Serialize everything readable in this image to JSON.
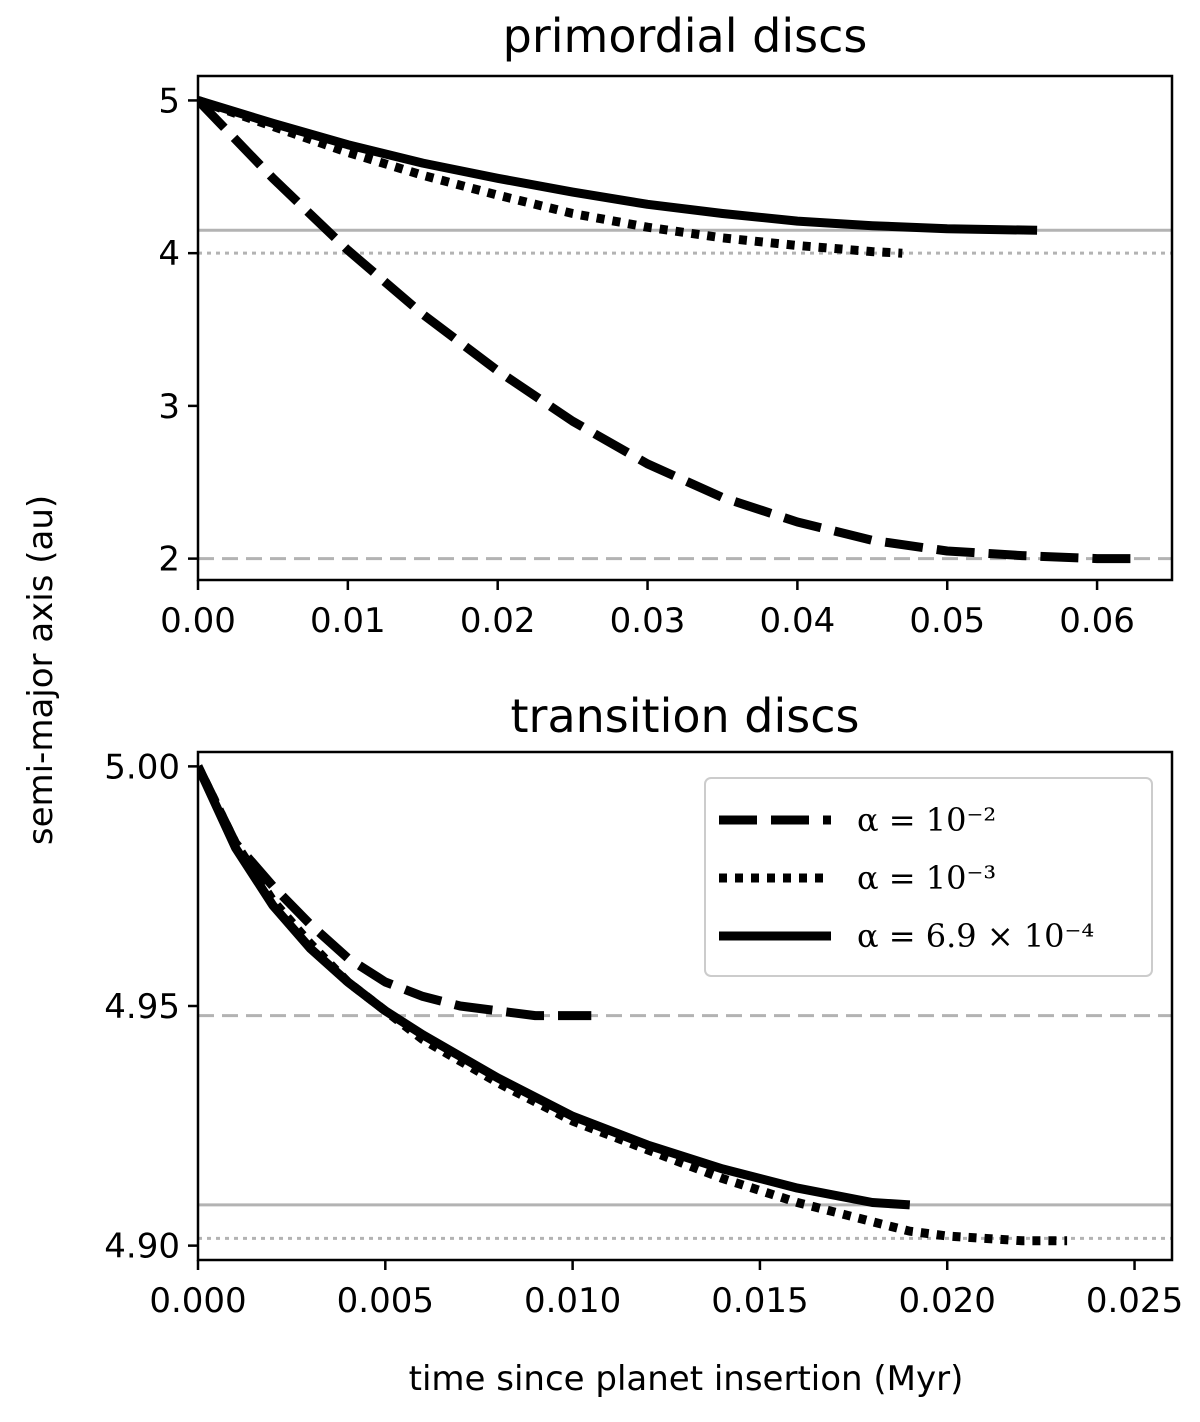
{
  "figure": {
    "ylabel": "semi-major axis (au)",
    "xlabel": "time since planet insertion (Myr)"
  },
  "chart_data": [
    {
      "type": "line",
      "title": "primordial discs",
      "xlabel": "",
      "ylabel": "semi-major axis (au)",
      "xlim": [
        0.0,
        0.065
      ],
      "ylim": [
        1.86,
        5.16
      ],
      "xticks": [
        0.0,
        0.01,
        0.02,
        0.03,
        0.04,
        0.05,
        0.06
      ],
      "xtick_labels": [
        "0.00",
        "0.01",
        "0.02",
        "0.03",
        "0.04",
        "0.05",
        "0.06"
      ],
      "yticks": [
        2,
        3,
        4,
        5
      ],
      "ytick_labels": [
        "2",
        "3",
        "4",
        "5"
      ],
      "grid": false,
      "series": [
        {
          "name": "α = 10⁻²",
          "style": "dashed",
          "color": "#000000",
          "x": [
            0.0,
            0.005,
            0.01,
            0.015,
            0.02,
            0.025,
            0.03,
            0.035,
            0.04,
            0.045,
            0.05,
            0.055,
            0.06,
            0.0625
          ],
          "y": [
            5.0,
            4.49,
            4.02,
            3.6,
            3.23,
            2.9,
            2.62,
            2.4,
            2.24,
            2.12,
            2.05,
            2.02,
            2.0,
            2.0
          ]
        },
        {
          "name": "α = 10⁻³",
          "style": "dotted",
          "color": "#000000",
          "x": [
            0.0,
            0.005,
            0.01,
            0.015,
            0.02,
            0.025,
            0.03,
            0.035,
            0.04,
            0.045,
            0.047
          ],
          "y": [
            5.0,
            4.83,
            4.66,
            4.51,
            4.38,
            4.26,
            4.17,
            4.1,
            4.05,
            4.01,
            4.0
          ]
        },
        {
          "name": "α = 6.9 × 10⁻⁴",
          "style": "solid",
          "color": "#000000",
          "x": [
            0.0,
            0.005,
            0.01,
            0.015,
            0.02,
            0.025,
            0.03,
            0.035,
            0.04,
            0.045,
            0.05,
            0.056
          ],
          "y": [
            5.0,
            4.85,
            4.71,
            4.59,
            4.49,
            4.4,
            4.32,
            4.26,
            4.21,
            4.18,
            4.16,
            4.15
          ]
        }
      ],
      "reference_lines": [
        {
          "y": 4.15,
          "style": "solid",
          "color": "#b3b3b3"
        },
        {
          "y": 4.0,
          "style": "dotted",
          "color": "#b3b3b3"
        },
        {
          "y": 2.0,
          "style": "dashed",
          "color": "#b3b3b3"
        }
      ]
    },
    {
      "type": "line",
      "title": "transition discs",
      "xlabel": "time since planet insertion (Myr)",
      "ylabel": "semi-major axis (au)",
      "xlim": [
        0.0,
        0.026
      ],
      "ylim": [
        4.897,
        5.003
      ],
      "xticks": [
        0.0,
        0.005,
        0.01,
        0.015,
        0.02,
        0.025
      ],
      "xtick_labels": [
        "0.000",
        "0.005",
        "0.010",
        "0.015",
        "0.020",
        "0.025"
      ],
      "yticks": [
        4.9,
        4.95,
        5.0
      ],
      "ytick_labels": [
        "4.90",
        "4.95",
        "5.00"
      ],
      "grid": false,
      "legend": {
        "location": "upper right",
        "entries": [
          {
            "label": "α = 10⁻²",
            "style": "dashed"
          },
          {
            "label": "α = 10⁻³",
            "style": "dotted"
          },
          {
            "label": "α = 6.9 × 10⁻⁴",
            "style": "solid"
          }
        ]
      },
      "series": [
        {
          "name": "α = 10⁻²",
          "style": "dashed",
          "color": "#000000",
          "x": [
            0.0,
            0.001,
            0.002,
            0.003,
            0.004,
            0.005,
            0.006,
            0.007,
            0.008,
            0.009,
            0.0105
          ],
          "y": [
            5.0,
            4.984,
            4.975,
            4.967,
            4.96,
            4.955,
            4.952,
            4.95,
            4.949,
            4.948,
            4.948
          ]
        },
        {
          "name": "α = 10⁻³",
          "style": "dotted",
          "color": "#000000",
          "x": [
            0.0,
            0.001,
            0.002,
            0.003,
            0.004,
            0.005,
            0.006,
            0.008,
            0.01,
            0.012,
            0.014,
            0.016,
            0.018,
            0.019,
            0.02,
            0.021,
            0.022,
            0.0232
          ],
          "y": [
            5.0,
            4.984,
            4.972,
            4.963,
            4.955,
            4.949,
            4.943,
            4.934,
            4.926,
            4.92,
            4.914,
            4.909,
            4.905,
            4.903,
            4.902,
            4.9015,
            4.901,
            4.901
          ]
        },
        {
          "name": "α = 6.9 × 10⁻⁴",
          "style": "solid",
          "color": "#000000",
          "x": [
            0.0,
            0.001,
            0.002,
            0.003,
            0.004,
            0.005,
            0.006,
            0.008,
            0.01,
            0.012,
            0.014,
            0.016,
            0.018,
            0.019
          ],
          "y": [
            5.0,
            4.983,
            4.971,
            4.962,
            4.955,
            4.949,
            4.944,
            4.935,
            4.927,
            4.921,
            4.916,
            4.912,
            4.909,
            4.9085
          ]
        }
      ],
      "reference_lines": [
        {
          "y": 4.948,
          "style": "dashed",
          "color": "#b3b3b3"
        },
        {
          "y": 4.9085,
          "style": "solid",
          "color": "#b3b3b3"
        },
        {
          "y": 4.9015,
          "style": "dotted",
          "color": "#b3b3b3"
        }
      ]
    }
  ]
}
